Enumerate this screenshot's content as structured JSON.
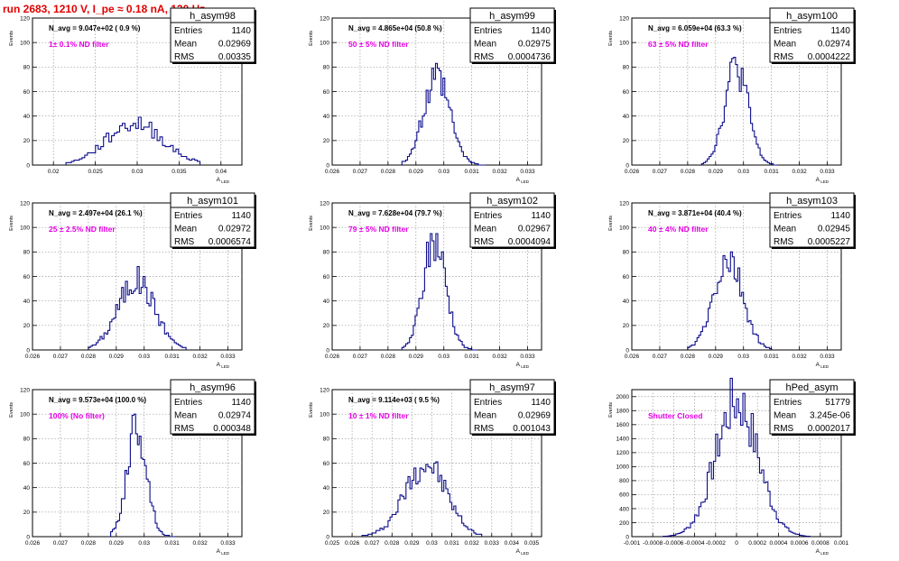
{
  "page": {
    "title": "run 2683,  1210 V, I_pe ≈ 0.18 nA, 120 Hz"
  },
  "colors": {
    "hist": "#0d0d8c",
    "grid": "#9a9a9a",
    "note": "#e600e6",
    "title": "#e00000",
    "text": "#000000"
  },
  "chart_data": [
    {
      "type": "histogram",
      "name": "h_asym98",
      "stats": {
        "entries": "1140",
        "mean": "0.02969",
        "rms": "0.00335"
      },
      "navg": "N_avg = 9.047e+02 ( 0.9 %)",
      "note": "1± 0.1% ND filter",
      "ylabel": "Events",
      "xlabel": "A_LED",
      "xlim": [
        0.0175,
        0.0425
      ],
      "ylim": [
        0,
        120
      ],
      "xticks": [
        0.02,
        0.025,
        0.03,
        0.035,
        0.04
      ],
      "xtick_labels": [
        "0.02",
        "0.025",
        "0.03",
        "0.035",
        "0.04"
      ],
      "yticks": [
        0,
        20,
        40,
        60,
        80,
        100,
        120
      ],
      "ytick_labels": [
        "0",
        "20",
        "40",
        "60",
        "80",
        "100",
        "120"
      ],
      "bins": {
        "mean": 0.02969,
        "sigma": 0.00335,
        "nbins": 50,
        "peak": 34,
        "start": 0.0215,
        "end": 0.0375,
        "seed": 98
      }
    },
    {
      "type": "histogram",
      "name": "h_asym99",
      "stats": {
        "entries": "1140",
        "mean": "0.02975",
        "rms": "0.0004736"
      },
      "navg": "N_avg = 4.865e+04 (50.8 %)",
      "note": "50 ± 5% ND filter",
      "ylabel": "Events",
      "xlabel": "A_LED",
      "xlim": [
        0.026,
        0.0335
      ],
      "ylim": [
        0,
        120
      ],
      "xticks": [
        0.026,
        0.027,
        0.028,
        0.029,
        0.03,
        0.031,
        0.032,
        0.033
      ],
      "xtick_labels": [
        "0.026",
        "0.027",
        "0.028",
        "0.029",
        "0.03",
        "0.031",
        "0.032",
        "0.033"
      ],
      "yticks": [
        0,
        20,
        40,
        60,
        80,
        100,
        120
      ],
      "ytick_labels": [
        "0",
        "20",
        "40",
        "60",
        "80",
        "100",
        "120"
      ],
      "bins": {
        "mean": 0.02975,
        "sigma": 0.0004736,
        "nbins": 45,
        "peak": 69,
        "start": 0.0285,
        "end": 0.0315,
        "seed": 99
      }
    },
    {
      "type": "histogram",
      "name": "h_asym100",
      "stats": {
        "entries": "1140",
        "mean": "0.02974",
        "rms": "0.0004222"
      },
      "navg": "N_avg = 6.059e+04 (63.3 %)",
      "note": "63 ± 5% ND filter",
      "ylabel": "Events",
      "xlabel": "A_LED",
      "xlim": [
        0.026,
        0.0335
      ],
      "ylim": [
        0,
        120
      ],
      "xticks": [
        0.026,
        0.027,
        0.028,
        0.029,
        0.03,
        0.031,
        0.032,
        0.033
      ],
      "xtick_labels": [
        "0.026",
        "0.027",
        "0.028",
        "0.029",
        "0.03",
        "0.031",
        "0.032",
        "0.033"
      ],
      "yticks": [
        0,
        20,
        40,
        60,
        80,
        100,
        120
      ],
      "ytick_labels": [
        "0",
        "20",
        "40",
        "60",
        "80",
        "100",
        "120"
      ],
      "bins": {
        "mean": 0.02974,
        "sigma": 0.0004222,
        "nbins": 40,
        "peak": 80,
        "start": 0.0285,
        "end": 0.0312,
        "seed": 100
      }
    },
    {
      "type": "histogram",
      "name": "h_asym101",
      "stats": {
        "entries": "1140",
        "mean": "0.02972",
        "rms": "0.0006574"
      },
      "navg": "N_avg = 2.497e+04 (26.1 %)",
      "note": "25 ± 2.5% ND filter",
      "ylabel": "Events",
      "xlabel": "A_LED",
      "xlim": [
        0.026,
        0.0335
      ],
      "ylim": [
        0,
        120
      ],
      "xticks": [
        0.026,
        0.027,
        0.028,
        0.029,
        0.03,
        0.031,
        0.032,
        0.033
      ],
      "xtick_labels": [
        "0.026",
        "0.027",
        "0.028",
        "0.029",
        "0.03",
        "0.031",
        "0.032",
        "0.033"
      ],
      "yticks": [
        0,
        20,
        40,
        60,
        80,
        100,
        120
      ],
      "ytick_labels": [
        "0",
        "20",
        "40",
        "60",
        "80",
        "100",
        "120"
      ],
      "bins": {
        "mean": 0.02972,
        "sigma": 0.0006574,
        "nbins": 50,
        "peak": 57,
        "start": 0.028,
        "end": 0.0315,
        "seed": 101
      }
    },
    {
      "type": "histogram",
      "name": "h_asym102",
      "stats": {
        "entries": "1140",
        "mean": "0.02967",
        "rms": "0.0004094"
      },
      "navg": "N_avg = 7.628e+04 (79.7 %)",
      "note": "79 ± 5% ND filter",
      "ylabel": "Events",
      "xlabel": "A_LED",
      "xlim": [
        0.026,
        0.0335
      ],
      "ylim": [
        0,
        120
      ],
      "xticks": [
        0.026,
        0.027,
        0.028,
        0.029,
        0.03,
        0.031,
        0.032,
        0.033
      ],
      "xtick_labels": [
        "0.026",
        "0.027",
        "0.028",
        "0.029",
        "0.03",
        "0.031",
        "0.032",
        "0.033"
      ],
      "yticks": [
        0,
        20,
        40,
        60,
        80,
        100,
        120
      ],
      "ytick_labels": [
        "0",
        "20",
        "40",
        "60",
        "80",
        "100",
        "120"
      ],
      "bins": {
        "mean": 0.02967,
        "sigma": 0.0004094,
        "nbins": 40,
        "peak": 89,
        "start": 0.0285,
        "end": 0.0312,
        "seed": 102
      }
    },
    {
      "type": "histogram",
      "name": "h_asym103",
      "stats": {
        "entries": "1140",
        "mean": "0.02945",
        "rms": "0.0005227"
      },
      "navg": "N_avg = 3.871e+04 (40.4 %)",
      "note": "40 ± 4% ND filter",
      "ylabel": "Events",
      "xlabel": "A_LED",
      "xlim": [
        0.026,
        0.0335
      ],
      "ylim": [
        0,
        120
      ],
      "xticks": [
        0.026,
        0.027,
        0.028,
        0.029,
        0.03,
        0.031,
        0.032,
        0.033
      ],
      "xtick_labels": [
        "0.026",
        "0.027",
        "0.028",
        "0.029",
        "0.03",
        "0.031",
        "0.032",
        "0.033"
      ],
      "yticks": [
        0,
        20,
        40,
        60,
        80,
        100,
        120
      ],
      "ytick_labels": [
        "0",
        "20",
        "40",
        "60",
        "80",
        "100",
        "120"
      ],
      "bins": {
        "mean": 0.02945,
        "sigma": 0.0005227,
        "nbins": 45,
        "peak": 72,
        "start": 0.028,
        "end": 0.031,
        "seed": 103
      }
    },
    {
      "type": "histogram",
      "name": "h_asym96",
      "stats": {
        "entries": "1140",
        "mean": "0.02974",
        "rms": "0.000348"
      },
      "navg": "N_avg = 9.573e+04 (100.0 %)",
      "note": "100% (No filter)",
      "ylabel": "Events",
      "xlabel": "A_LED",
      "xlim": [
        0.026,
        0.0335
      ],
      "ylim": [
        0,
        120
      ],
      "xticks": [
        0.026,
        0.027,
        0.028,
        0.029,
        0.03,
        0.031,
        0.032,
        0.033
      ],
      "xtick_labels": [
        "0.026",
        "0.027",
        "0.028",
        "0.029",
        "0.03",
        "0.031",
        "0.032",
        "0.033"
      ],
      "yticks": [
        0,
        20,
        40,
        60,
        80,
        100,
        120
      ],
      "ytick_labels": [
        "0",
        "20",
        "40",
        "60",
        "80",
        "100",
        "120"
      ],
      "bins": {
        "mean": 0.02974,
        "sigma": 0.000348,
        "nbins": 36,
        "peak": 91,
        "start": 0.0288,
        "end": 0.0311,
        "seed": 96
      }
    },
    {
      "type": "histogram",
      "name": "h_asym97",
      "stats": {
        "entries": "1140",
        "mean": "0.02969",
        "rms": "0.001043"
      },
      "navg": "N_avg = 9.114e+03 ( 9.5 %)",
      "note": "10 ± 1% ND filter",
      "ylabel": "Events",
      "xlabel": "A_LED",
      "xlim": [
        0.025,
        0.0355
      ],
      "ylim": [
        0,
        120
      ],
      "xticks": [
        0.025,
        0.026,
        0.027,
        0.028,
        0.029,
        0.03,
        0.031,
        0.032,
        0.033,
        0.034,
        0.035
      ],
      "xtick_labels": [
        "0.025",
        "0.026",
        "0.027",
        "0.028",
        "0.029",
        "0.03",
        "0.031",
        "0.032",
        "0.033",
        "0.034",
        "0.035"
      ],
      "yticks": [
        0,
        20,
        40,
        60,
        80,
        100,
        120
      ],
      "ytick_labels": [
        "0",
        "20",
        "40",
        "60",
        "80",
        "100",
        "120"
      ],
      "bins": {
        "mean": 0.02969,
        "sigma": 0.001043,
        "nbins": 60,
        "peak": 60,
        "start": 0.0265,
        "end": 0.0325,
        "seed": 97
      }
    },
    {
      "type": "histogram",
      "name": "hPed_asym",
      "stats": {
        "entries": "51779",
        "mean": "3.245e-06",
        "rms": "0.0002017"
      },
      "navg": "",
      "note": "Shutter Closed",
      "ylabel": "Events",
      "xlabel": "A_LED",
      "xlim": [
        -0.001,
        0.001
      ],
      "ylim": [
        0,
        2100
      ],
      "xticks": [
        -0.001,
        -0.0008,
        -0.0006,
        -0.0004,
        -0.0002,
        0,
        0.0002,
        0.0004,
        0.0006,
        0.0008,
        0.001
      ],
      "xtick_labels": [
        "-0.001",
        "-0.0008",
        "-0.0006",
        "-0.0004",
        "-0.0002",
        "0",
        "0.0002",
        "0.0004",
        "0.0006",
        "0.0008",
        "0.001"
      ],
      "yticks": [
        0,
        200,
        400,
        600,
        800,
        1000,
        1200,
        1400,
        1600,
        1800,
        2000
      ],
      "ytick_labels": [
        "0",
        "200",
        "400",
        "600",
        "800",
        "1000",
        "1200",
        "1400",
        "1600",
        "1800",
        "2000"
      ],
      "bins": {
        "mean": 3.2e-06,
        "sigma": 0.0002017,
        "nbins": 70,
        "peak": 1930,
        "start": -0.0007,
        "end": 0.0007,
        "seed": 7
      }
    }
  ]
}
